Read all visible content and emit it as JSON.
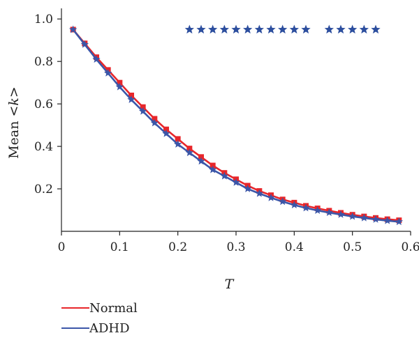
{
  "chart_data": {
    "type": "line",
    "title": "",
    "xlabel": "T",
    "ylabel": "Mean <k>",
    "xlim": [
      0,
      0.6
    ],
    "ylim": [
      0,
      1.05
    ],
    "xticks": [
      0,
      0.1,
      0.2,
      0.3,
      0.4,
      0.5,
      0.6
    ],
    "xtick_labels": [
      "0",
      "0.1",
      "0.2",
      "0.3",
      "0.4",
      "0.5",
      "0.6"
    ],
    "yticks": [
      0.2,
      0.4,
      0.6,
      0.8,
      1.0
    ],
    "ytick_labels": [
      "0.2",
      "0.4",
      "0.6",
      "0.8",
      "1.0"
    ],
    "grid": false,
    "legend_position": "bottom-left",
    "x": [
      0.02,
      0.04,
      0.06,
      0.08,
      0.1,
      0.12,
      0.14,
      0.16,
      0.18,
      0.2,
      0.22,
      0.24,
      0.26,
      0.28,
      0.3,
      0.32,
      0.34,
      0.36,
      0.38,
      0.4,
      0.42,
      0.44,
      0.46,
      0.48,
      0.5,
      0.52,
      0.54,
      0.56,
      0.58
    ],
    "series": [
      {
        "name": "Normal",
        "color": "#e8262a",
        "marker": "square",
        "values": [
          0.95,
          0.885,
          0.82,
          0.76,
          0.7,
          0.64,
          0.585,
          0.53,
          0.48,
          0.435,
          0.39,
          0.35,
          0.31,
          0.275,
          0.245,
          0.215,
          0.19,
          0.17,
          0.15,
          0.135,
          0.12,
          0.108,
          0.097,
          0.087,
          0.078,
          0.07,
          0.063,
          0.057,
          0.052
        ]
      },
      {
        "name": "ADHD",
        "color": "#3b56a8",
        "marker": "star",
        "values": [
          0.95,
          0.88,
          0.81,
          0.745,
          0.68,
          0.62,
          0.565,
          0.51,
          0.46,
          0.41,
          0.37,
          0.33,
          0.29,
          0.26,
          0.23,
          0.2,
          0.178,
          0.158,
          0.14,
          0.124,
          0.11,
          0.098,
          0.088,
          0.079,
          0.07,
          0.063,
          0.056,
          0.05,
          0.045
        ]
      }
    ],
    "significance": {
      "color": "#2c4e9e",
      "y": 0.95,
      "x": [
        0.22,
        0.24,
        0.26,
        0.28,
        0.3,
        0.32,
        0.34,
        0.36,
        0.38,
        0.4,
        0.42,
        0.46,
        0.48,
        0.5,
        0.52,
        0.54
      ]
    }
  }
}
